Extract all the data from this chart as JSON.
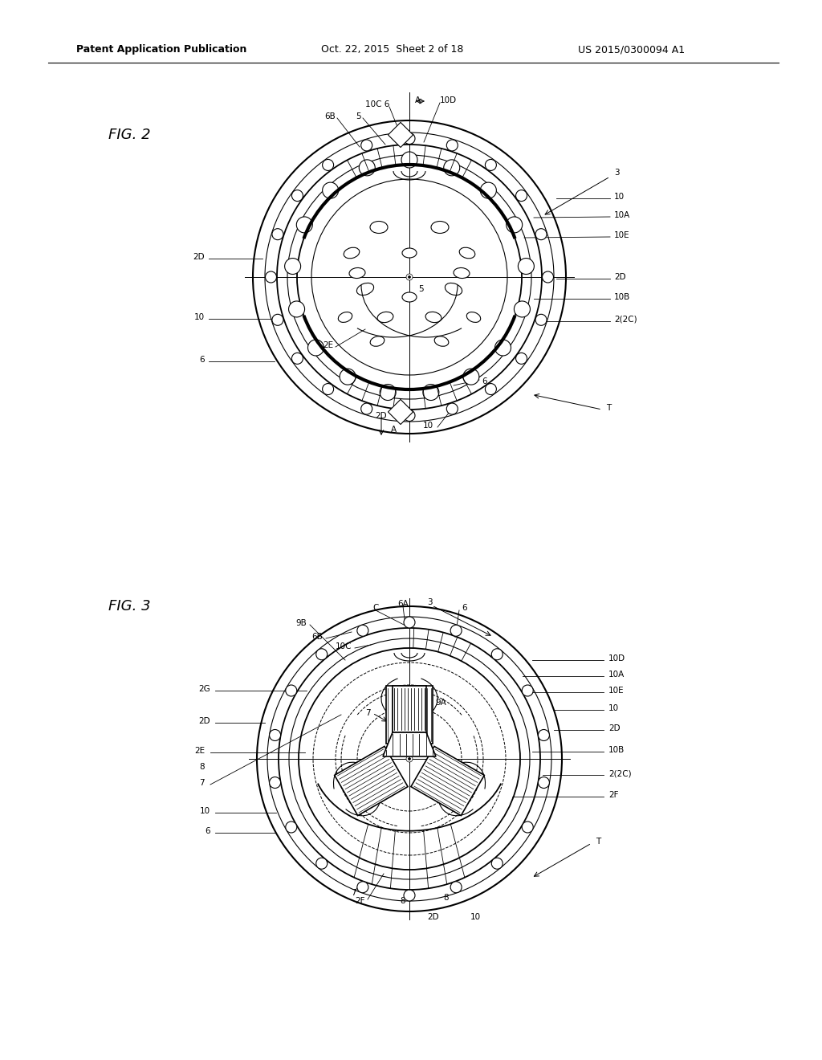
{
  "background_color": "#ffffff",
  "header_text": "Patent Application Publication",
  "header_date": "Oct. 22, 2015  Sheet 2 of 18",
  "header_patent": "US 2015/0300094 A1",
  "fig2_label": "FIG. 2",
  "fig3_label": "FIG. 3",
  "line_color": "#000000"
}
